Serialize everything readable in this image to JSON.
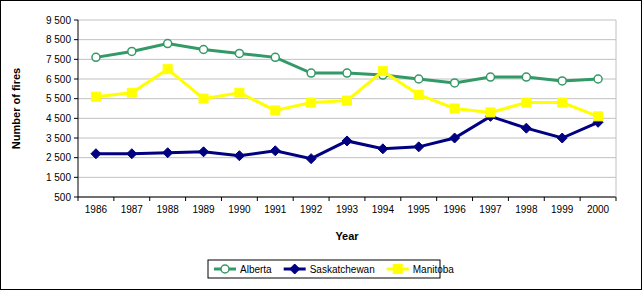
{
  "chart_data": {
    "type": "line",
    "x_label": "Year",
    "y_label": "Number of fires",
    "categories": [
      "1986",
      "1987",
      "1988",
      "1989",
      "1990",
      "1991",
      "1992",
      "1993",
      "1994",
      "1995",
      "1996",
      "1997",
      "1998",
      "1999",
      "2000"
    ],
    "series": [
      {
        "name": "Alberta",
        "color": "#339966",
        "marker": "circle",
        "values": [
          7600,
          7900,
          8300,
          8000,
          7800,
          7600,
          6800,
          6800,
          6700,
          6500,
          6300,
          6600,
          6600,
          6400,
          6500
        ]
      },
      {
        "name": "Saskatchewan",
        "color": "#000080",
        "marker": "diamond",
        "values": [
          2700,
          2700,
          2750,
          2800,
          2600,
          2850,
          2450,
          3350,
          2950,
          3050,
          3500,
          4600,
          4000,
          3500,
          4300
        ]
      },
      {
        "name": "Manitoba",
        "color": "#ffff00",
        "marker": "square",
        "values": [
          5600,
          5800,
          7000,
          5500,
          5800,
          4900,
          5300,
          5400,
          6900,
          5700,
          5000,
          4800,
          5300,
          5300,
          4600
        ]
      }
    ],
    "ylim": [
      500,
      9500
    ],
    "yticks": [
      500,
      {
        "value": 1500,
        "label": "1 500"
      },
      {
        "value": 2500,
        "label": "2 500"
      },
      {
        "value": 3500,
        "label": "3 500"
      },
      {
        "value": 4500,
        "label": "4 500"
      },
      {
        "value": 5500,
        "label": "5 500"
      },
      {
        "value": 6500,
        "label": "6 500"
      },
      {
        "value": 7500,
        "label": "7 500"
      },
      {
        "value": 8500,
        "label": "8 500"
      },
      {
        "value": 9500,
        "label": "9 500"
      }
    ],
    "grid": true,
    "legend": "bottom"
  }
}
